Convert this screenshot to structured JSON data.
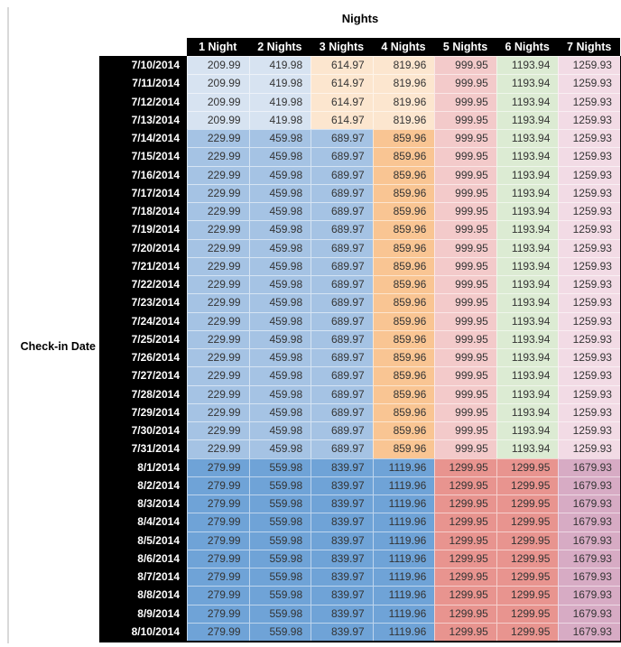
{
  "title": "Nights",
  "row_axis_label": "Check-in Date",
  "chart_data": {
    "type": "table",
    "title": "Nights",
    "row_axis_label": "Check-in Date",
    "columns": [
      "1 Night",
      "2 Nights",
      "3 Nights",
      "4 Nights",
      "5 Nights",
      "6 Nights",
      "7 Nights"
    ],
    "rows": [
      {
        "date": "7/10/2014",
        "block": "b1",
        "values": [
          "209.99",
          "419.98",
          "614.97",
          "819.96",
          "999.95",
          "1193.94",
          "1259.93"
        ]
      },
      {
        "date": "7/11/2014",
        "block": "b1",
        "values": [
          "209.99",
          "419.98",
          "614.97",
          "819.96",
          "999.95",
          "1193.94",
          "1259.93"
        ]
      },
      {
        "date": "7/12/2014",
        "block": "b1",
        "values": [
          "209.99",
          "419.98",
          "614.97",
          "819.96",
          "999.95",
          "1193.94",
          "1259.93"
        ]
      },
      {
        "date": "7/13/2014",
        "block": "b1",
        "values": [
          "209.99",
          "419.98",
          "614.97",
          "819.96",
          "999.95",
          "1193.94",
          "1259.93"
        ]
      },
      {
        "date": "7/14/2014",
        "block": "b2",
        "values": [
          "229.99",
          "459.98",
          "689.97",
          "859.96",
          "999.95",
          "1193.94",
          "1259.93"
        ]
      },
      {
        "date": "7/15/2014",
        "block": "b2",
        "values": [
          "229.99",
          "459.98",
          "689.97",
          "859.96",
          "999.95",
          "1193.94",
          "1259.93"
        ]
      },
      {
        "date": "7/16/2014",
        "block": "b2",
        "values": [
          "229.99",
          "459.98",
          "689.97",
          "859.96",
          "999.95",
          "1193.94",
          "1259.93"
        ]
      },
      {
        "date": "7/17/2014",
        "block": "b2",
        "values": [
          "229.99",
          "459.98",
          "689.97",
          "859.96",
          "999.95",
          "1193.94",
          "1259.93"
        ]
      },
      {
        "date": "7/18/2014",
        "block": "b2",
        "values": [
          "229.99",
          "459.98",
          "689.97",
          "859.96",
          "999.95",
          "1193.94",
          "1259.93"
        ]
      },
      {
        "date": "7/19/2014",
        "block": "b2",
        "values": [
          "229.99",
          "459.98",
          "689.97",
          "859.96",
          "999.95",
          "1193.94",
          "1259.93"
        ]
      },
      {
        "date": "7/20/2014",
        "block": "b2",
        "values": [
          "229.99",
          "459.98",
          "689.97",
          "859.96",
          "999.95",
          "1193.94",
          "1259.93"
        ]
      },
      {
        "date": "7/21/2014",
        "block": "b2",
        "values": [
          "229.99",
          "459.98",
          "689.97",
          "859.96",
          "999.95",
          "1193.94",
          "1259.93"
        ]
      },
      {
        "date": "7/22/2014",
        "block": "b2",
        "values": [
          "229.99",
          "459.98",
          "689.97",
          "859.96",
          "999.95",
          "1193.94",
          "1259.93"
        ]
      },
      {
        "date": "7/23/2014",
        "block": "b2",
        "values": [
          "229.99",
          "459.98",
          "689.97",
          "859.96",
          "999.95",
          "1193.94",
          "1259.93"
        ]
      },
      {
        "date": "7/24/2014",
        "block": "b2",
        "values": [
          "229.99",
          "459.98",
          "689.97",
          "859.96",
          "999.95",
          "1193.94",
          "1259.93"
        ]
      },
      {
        "date": "7/25/2014",
        "block": "b2",
        "values": [
          "229.99",
          "459.98",
          "689.97",
          "859.96",
          "999.95",
          "1193.94",
          "1259.93"
        ]
      },
      {
        "date": "7/26/2014",
        "block": "b2",
        "values": [
          "229.99",
          "459.98",
          "689.97",
          "859.96",
          "999.95",
          "1193.94",
          "1259.93"
        ]
      },
      {
        "date": "7/27/2014",
        "block": "b2",
        "values": [
          "229.99",
          "459.98",
          "689.97",
          "859.96",
          "999.95",
          "1193.94",
          "1259.93"
        ]
      },
      {
        "date": "7/28/2014",
        "block": "b2",
        "values": [
          "229.99",
          "459.98",
          "689.97",
          "859.96",
          "999.95",
          "1193.94",
          "1259.93"
        ]
      },
      {
        "date": "7/29/2014",
        "block": "b2",
        "values": [
          "229.99",
          "459.98",
          "689.97",
          "859.96",
          "999.95",
          "1193.94",
          "1259.93"
        ]
      },
      {
        "date": "7/30/2014",
        "block": "b2",
        "values": [
          "229.99",
          "459.98",
          "689.97",
          "859.96",
          "999.95",
          "1193.94",
          "1259.93"
        ]
      },
      {
        "date": "7/31/2014",
        "block": "b2",
        "values": [
          "229.99",
          "459.98",
          "689.97",
          "859.96",
          "999.95",
          "1193.94",
          "1259.93"
        ]
      },
      {
        "date": "8/1/2014",
        "block": "b3",
        "values": [
          "279.99",
          "559.98",
          "839.97",
          "1119.96",
          "1299.95",
          "1299.95",
          "1679.93"
        ]
      },
      {
        "date": "8/2/2014",
        "block": "b3",
        "values": [
          "279.99",
          "559.98",
          "839.97",
          "1119.96",
          "1299.95",
          "1299.95",
          "1679.93"
        ]
      },
      {
        "date": "8/3/2014",
        "block": "b3",
        "values": [
          "279.99",
          "559.98",
          "839.97",
          "1119.96",
          "1299.95",
          "1299.95",
          "1679.93"
        ]
      },
      {
        "date": "8/4/2014",
        "block": "b3",
        "values": [
          "279.99",
          "559.98",
          "839.97",
          "1119.96",
          "1299.95",
          "1299.95",
          "1679.93"
        ]
      },
      {
        "date": "8/5/2014",
        "block": "b3",
        "values": [
          "279.99",
          "559.98",
          "839.97",
          "1119.96",
          "1299.95",
          "1299.95",
          "1679.93"
        ]
      },
      {
        "date": "8/6/2014",
        "block": "b3",
        "values": [
          "279.99",
          "559.98",
          "839.97",
          "1119.96",
          "1299.95",
          "1299.95",
          "1679.93"
        ]
      },
      {
        "date": "8/7/2014",
        "block": "b3",
        "values": [
          "279.99",
          "559.98",
          "839.97",
          "1119.96",
          "1299.95",
          "1299.95",
          "1679.93"
        ]
      },
      {
        "date": "8/8/2014",
        "block": "b3",
        "values": [
          "279.99",
          "559.98",
          "839.97",
          "1119.96",
          "1299.95",
          "1299.95",
          "1679.93"
        ]
      },
      {
        "date": "8/9/2014",
        "block": "b3",
        "values": [
          "279.99",
          "559.98",
          "839.97",
          "1119.96",
          "1299.95",
          "1299.95",
          "1679.93"
        ]
      },
      {
        "date": "8/10/2014",
        "block": "b3",
        "values": [
          "279.99",
          "559.98",
          "839.97",
          "1119.96",
          "1299.95",
          "1299.95",
          "1679.93"
        ]
      }
    ]
  },
  "styles": {
    "header_bg": "#000000",
    "header_text": "#ffffff",
    "date_col_bg": "#000000",
    "date_col_text": "#ffffff",
    "cell_text": "#333333",
    "edge_line": "#d9d9d9",
    "palette": {
      "blue3": "#d7e3f1",
      "blue2": "#a5c3e4",
      "blue1": "#6fa3d7",
      "orange3": "#fce6cf",
      "orange2": "#f9c593",
      "red3": "#f3caca",
      "red2": "#e8948f",
      "green3": "#dcebd3",
      "magenta3": "#f2dbe5",
      "magenta2": "#d7abc4"
    },
    "block_colors": {
      "b1": [
        "blue3",
        "blue3",
        "orange3",
        "orange3",
        "red3",
        "green3",
        "magenta3"
      ],
      "b2": [
        "blue2",
        "blue2",
        "blue2",
        "orange2",
        "red3",
        "green3",
        "magenta3"
      ],
      "b3": [
        "blue1",
        "blue1",
        "blue1",
        "blue1",
        "red2",
        "red2",
        "magenta2"
      ]
    }
  }
}
